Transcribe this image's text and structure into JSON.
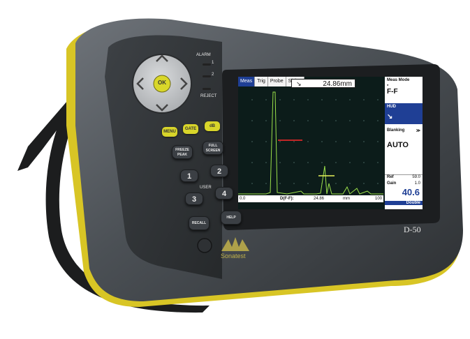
{
  "device": {
    "model": "D-50",
    "brand": "Sonatest",
    "alarm_label": "ALARM",
    "alarm_1": "1",
    "alarm_2": "2",
    "reject_label": "REJECT",
    "user_label": "USER",
    "ok_label": "OK"
  },
  "keypad": {
    "menu": "MENU",
    "gate": "GATE",
    "dB": "dB",
    "freeze_peak": [
      "FREEZE",
      "PEAK"
    ],
    "full_screen": [
      "FULL",
      "SCREEN"
    ],
    "num1": "1",
    "num2": "2",
    "num3": "3",
    "num4": "4",
    "recall": "RECALL",
    "help": "HELP"
  },
  "screen": {
    "tabs": [
      "Meas",
      "Trig",
      "Probe",
      "Sizing"
    ],
    "active_tab": "Meas",
    "measurement": "24.86mm",
    "bottom": {
      "left": "0.0",
      "label": "D(F-F):",
      "value": "24.86",
      "unit": "mm",
      "right": "100"
    },
    "side_menu": {
      "meas_mode_label": "Meas Mode",
      "meas_mode_dot": "●",
      "meas_mode_value": "F-F",
      "hud_label": "HUD",
      "hud_value": "↘",
      "blanking_label": "Blanking",
      "blanking_arrow": "≫",
      "blanking_value": "AUTO",
      "ref_label": "Ref",
      "ref_value": "59.0",
      "gain_label": "Gain",
      "gain_step": "1.0",
      "gain_value": "40.6",
      "double_label": "Double"
    },
    "colors": {
      "trace": "#9be04a",
      "gate": "#ff2a2a",
      "gate2": "#e6f15a",
      "accent": "#1f3f95"
    }
  }
}
